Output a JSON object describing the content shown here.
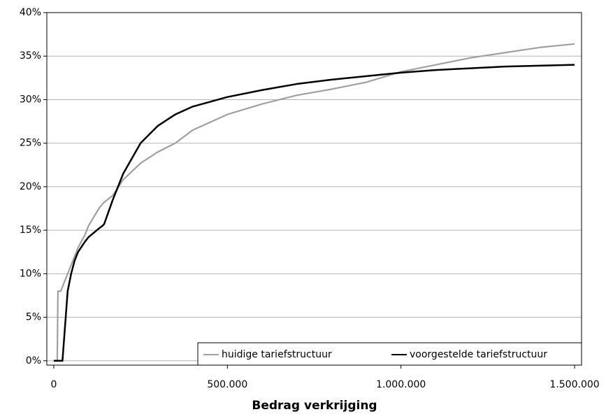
{
  "chart_data": {
    "type": "line",
    "x_label": "Bedrag verkrijging",
    "x": [
      0,
      10000,
      12000,
      20000,
      25000,
      40000,
      50000,
      60000,
      70000,
      90000,
      100000,
      130000,
      140000,
      145000,
      170000,
      200000,
      250000,
      300000,
      350000,
      400000,
      500000,
      600000,
      700000,
      800000,
      900000,
      1000000,
      1100000,
      1200000,
      1300000,
      1400000,
      1500000
    ],
    "series": [
      {
        "name": "huidige tariefstructuur",
        "color": "#a0a0a0",
        "values": [
          0,
          0,
          8,
          8,
          8.5,
          10,
          11,
          12,
          13,
          14.5,
          15.5,
          17.5,
          18,
          18.2,
          19,
          20.8,
          22.7,
          24,
          25,
          26.5,
          28.3,
          29.5,
          30.5,
          31.2,
          32,
          33.2,
          34,
          34.8,
          35.4,
          36,
          36.4
        ]
      },
      {
        "name": "voorgestelde tariefstructuur",
        "color": "#000000",
        "values": [
          0,
          0,
          0,
          0,
          0,
          8,
          10,
          11.5,
          12.5,
          13.7,
          14.2,
          15.2,
          15.5,
          15.7,
          18.5,
          21.5,
          25,
          27,
          28.3,
          29.2,
          30.3,
          31.1,
          31.8,
          32.3,
          32.7,
          33.1,
          33.4,
          33.6,
          33.8,
          33.9,
          34
        ]
      }
    ],
    "xlim": [
      -20000,
      1520000
    ],
    "xticks": [
      0,
      {
        "value": 500000,
        "label": "500.000"
      },
      {
        "value": 1000000,
        "label": "1.000.000"
      },
      {
        "value": 1500000,
        "label": "1.500.000"
      }
    ],
    "ylim": [
      -0.5,
      40
    ],
    "yticks": [
      {
        "value": 0,
        "label": "0%"
      },
      {
        "value": 5,
        "label": "5%"
      },
      {
        "value": 10,
        "label": "10%"
      },
      {
        "value": 15,
        "label": "15%"
      },
      {
        "value": 20,
        "label": "20%"
      },
      {
        "value": 25,
        "label": "25%"
      },
      {
        "value": 30,
        "label": "30%"
      },
      {
        "value": 35,
        "label": "35%"
      },
      {
        "value": 40,
        "label": "40%"
      }
    ],
    "grid": true,
    "legend": "lower right"
  }
}
